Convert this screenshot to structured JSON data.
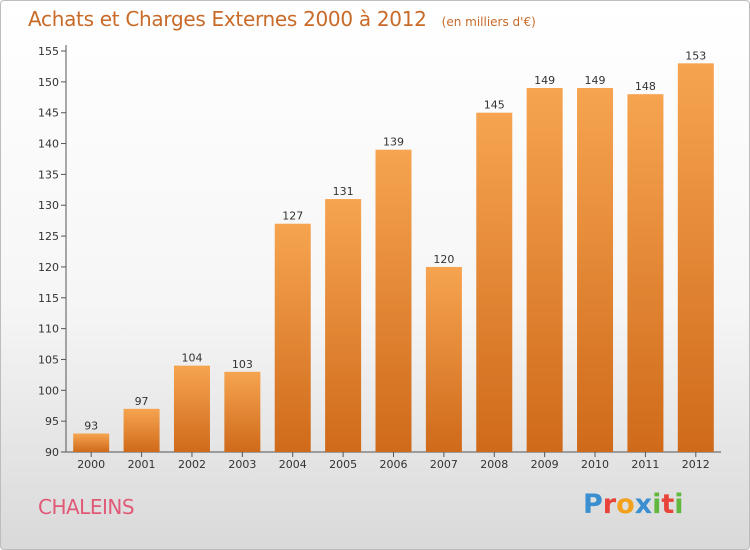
{
  "chart_data": {
    "type": "bar",
    "title": "Achats et Charges Externes 2000 à 2012",
    "unit": "(en milliers d'€)",
    "categories": [
      "2000",
      "2001",
      "2002",
      "2003",
      "2004",
      "2005",
      "2006",
      "2007",
      "2008",
      "2009",
      "2010",
      "2011",
      "2012"
    ],
    "values": [
      93,
      97,
      104,
      103,
      127,
      131,
      139,
      120,
      145,
      149,
      149,
      148,
      153
    ],
    "ylim": [
      90,
      155
    ],
    "yticks": [
      90,
      95,
      100,
      105,
      110,
      115,
      120,
      125,
      130,
      135,
      140,
      145,
      150,
      155
    ],
    "grid": false,
    "bar_color_top": "#f6a450",
    "bar_color_bottom": "#cf6a1a"
  },
  "place": "CHALEINS",
  "logo": {
    "letters": [
      "P",
      "r",
      "o",
      "x",
      "i",
      "t",
      "i"
    ],
    "colors": [
      "#3b8fd0",
      "#e8443a",
      "#f2a11c",
      "#3b8fd0",
      "#62b83e",
      "#e8443a",
      "#62b83e"
    ]
  }
}
